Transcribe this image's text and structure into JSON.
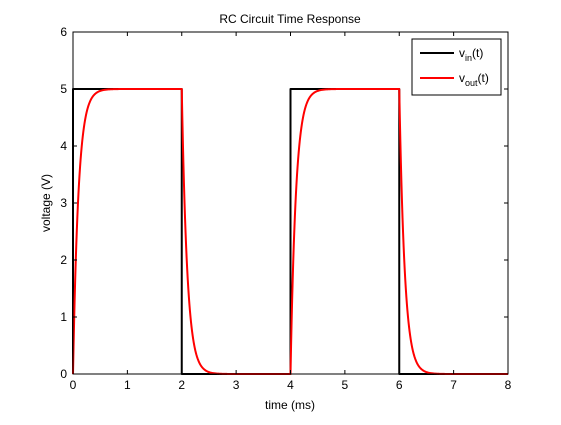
{
  "chart_data": {
    "type": "line",
    "title": "RC Circuit Time Response",
    "xlabel": "time (ms)",
    "ylabel": "voltage (V)",
    "xlim": [
      0,
      8
    ],
    "ylim": [
      0,
      6
    ],
    "xticks": [
      0,
      1,
      2,
      3,
      4,
      5,
      6,
      7,
      8
    ],
    "yticks": [
      0,
      1,
      2,
      3,
      4,
      5,
      6
    ],
    "grid": false,
    "legend_position": "top-right",
    "series": [
      {
        "name": "vin(t)",
        "legend_main": "v",
        "legend_sub": "in",
        "legend_tail": "(t)",
        "color": "#000000",
        "x": [
          0,
          0,
          2,
          2,
          4,
          4,
          6,
          6,
          8
        ],
        "y": [
          0,
          5,
          5,
          0,
          0,
          5,
          5,
          0,
          0
        ]
      },
      {
        "name": "vout(t)",
        "legend_main": "v",
        "legend_sub": "out",
        "legend_tail": "(t)",
        "color": "#ff0000",
        "model": "rc_response",
        "amplitude": 5,
        "tau": 0.1,
        "period": 4,
        "pulse_width": 2,
        "x_range": [
          0,
          8
        ]
      }
    ]
  }
}
